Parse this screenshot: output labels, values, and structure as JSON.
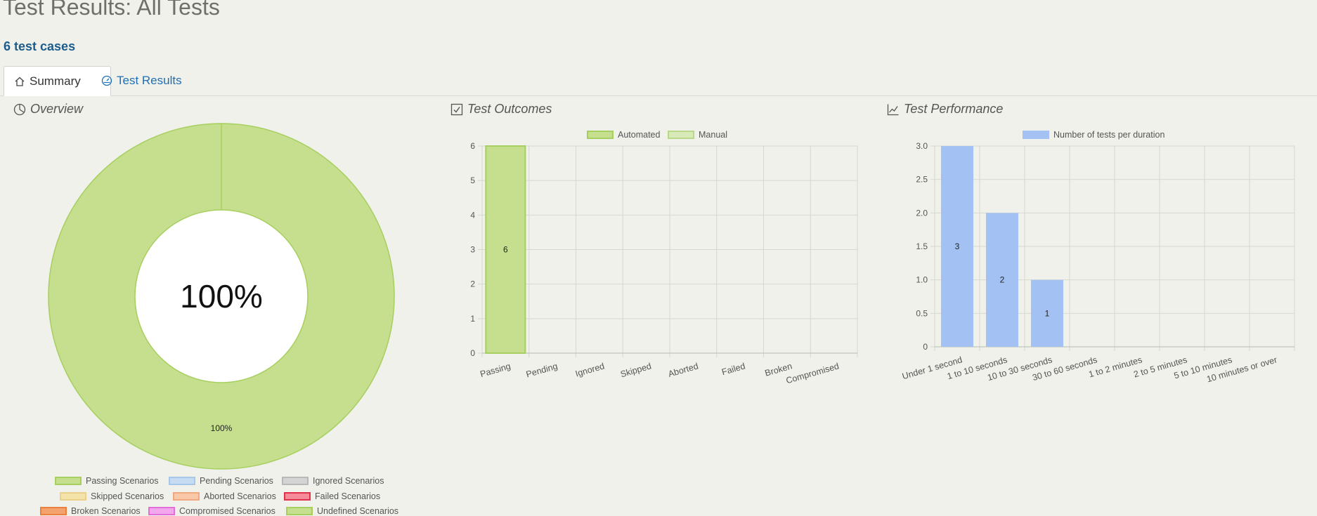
{
  "header": {
    "title": "Test Results: All Tests",
    "case_count": "6 test cases"
  },
  "tabs": [
    {
      "label": "Summary",
      "icon": "home-icon",
      "active": true
    },
    {
      "label": "Test Results",
      "icon": "dashboard-icon",
      "active": false
    }
  ],
  "overview": {
    "title": "Overview",
    "center_label": "100%",
    "chart_data": {
      "type": "pie",
      "categories": [
        "Passing Scenarios",
        "Pending Scenarios",
        "Ignored Scenarios",
        "Skipped Scenarios",
        "Aborted Scenarios",
        "Failed Scenarios",
        "Broken Scenarios",
        "Compromised Scenarios",
        "Undefined Scenarios"
      ],
      "values": [
        100,
        0,
        0,
        0,
        0,
        0,
        0,
        0,
        0
      ],
      "slice_label": "100%"
    },
    "legend": [
      {
        "label": "Passing Scenarios",
        "fill": "#c5df8e",
        "border": "#a6cf5f"
      },
      {
        "label": "Pending Scenarios",
        "fill": "#c5dcf3",
        "border": "#a8c8ea"
      },
      {
        "label": "Ignored Scenarios",
        "fill": "#d4d4d4",
        "border": "#b8b8b8"
      },
      {
        "label": "Skipped Scenarios",
        "fill": "#f3e3a8",
        "border": "#ead08a"
      },
      {
        "label": "Aborted Scenarios",
        "fill": "#f8c8a8",
        "border": "#f0a880"
      },
      {
        "label": "Failed Scenarios",
        "fill": "#f58a98",
        "border": "#e0304a"
      },
      {
        "label": "Broken Scenarios",
        "fill": "#f4a26e",
        "border": "#e8803e"
      },
      {
        "label": "Compromised Scenarios",
        "fill": "#f3a8ee",
        "border": "#e070d8"
      },
      {
        "label": "Undefined Scenarios",
        "fill": "#c5df8e",
        "border": "#a6cf5f"
      }
    ]
  },
  "outcomes": {
    "title": "Test Outcomes",
    "legend": [
      {
        "label": "Automated",
        "fill": "#c5df8e",
        "border": "#a6cf5f"
      },
      {
        "label": "Manual",
        "fill": "#d9eab8",
        "border": "#b9d88a"
      }
    ],
    "chart_data": {
      "type": "bar",
      "categories": [
        "Passing",
        "Pending",
        "Ignored",
        "Skipped",
        "Aborted",
        "Failed",
        "Broken",
        "Compromised"
      ],
      "series": [
        {
          "name": "Automated",
          "values": [
            6,
            0,
            0,
            0,
            0,
            0,
            0,
            0
          ]
        },
        {
          "name": "Manual",
          "values": [
            0,
            0,
            0,
            0,
            0,
            0,
            0,
            0
          ]
        }
      ],
      "yticks": [
        "0",
        "1",
        "2",
        "3",
        "4",
        "5",
        "6"
      ],
      "ylim": [
        0,
        6
      ]
    }
  },
  "performance": {
    "title": "Test Performance",
    "legend": [
      {
        "label": "Number of tests per duration",
        "fill": "#a3c1f3"
      }
    ],
    "chart_data": {
      "type": "bar",
      "categories": [
        "Under 1 second",
        "1 to 10 seconds",
        "10 to 30 seconds",
        "30 to 60 seconds",
        "1 to 2 minutes",
        "2 to 5 minutes",
        "5 to 10 minutes",
        "10 minutes or over"
      ],
      "series": [
        {
          "name": "Number of tests per duration",
          "values": [
            3,
            2,
            1,
            0,
            0,
            0,
            0,
            0
          ]
        }
      ],
      "yticks": [
        "0",
        "0.5",
        "1.0",
        "1.5",
        "2.0",
        "2.5",
        "3.0"
      ],
      "ylim": [
        0,
        3
      ]
    }
  }
}
